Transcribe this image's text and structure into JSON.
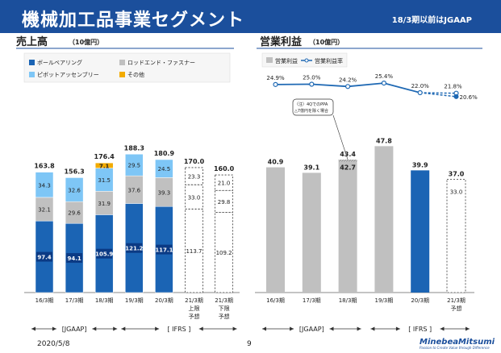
{
  "header": {
    "title": "機械加工品事業セグメント",
    "note": "18/3期以前はJGAAP"
  },
  "footer": {
    "date": "2020/5/8",
    "page": "9"
  },
  "logo": {
    "brand": "MinebeaMitsumi",
    "tagline": "Passion to Create Value through Difference"
  },
  "colors": {
    "blue": "#1b64b4",
    "gray": "#c0c0c0",
    "lightblue": "#7ec6f6",
    "orange": "#f2ab00",
    "header": "#1b4f9c",
    "line": "#1f69b4"
  },
  "chart_data": [
    {
      "type": "bar",
      "stacked": true,
      "title": "売上高",
      "unit": "（10億円）",
      "legend": [
        {
          "name": "ボールベアリング",
          "color": "#1b64b4"
        },
        {
          "name": "ロッドエンド・ファスナー",
          "color": "#c0c0c0"
        },
        {
          "name": "ピボットアッセンブリー",
          "color": "#7ec6f6"
        },
        {
          "name": "その他",
          "color": "#f2ab00"
        }
      ],
      "categories": [
        {
          "label": "16/3期",
          "sub": []
        },
        {
          "label": "17/3期",
          "sub": []
        },
        {
          "label": "18/3期",
          "sub": []
        },
        {
          "label": "19/3期",
          "sub": []
        },
        {
          "label": "20/3期",
          "sub": []
        },
        {
          "label": "21/3期",
          "sub": [
            "上限",
            "予想"
          ]
        },
        {
          "label": "21/3期",
          "sub": [
            "下限",
            "予想"
          ]
        }
      ],
      "series": [
        {
          "name": "ボールベアリング",
          "values": [
            97.4,
            94.1,
            105.9,
            121.2,
            117.1,
            113.7,
            109.2
          ]
        },
        {
          "name": "ロッドエンド・ファスナー",
          "values": [
            32.1,
            29.6,
            31.9,
            37.6,
            39.3,
            33.0,
            29.8
          ]
        },
        {
          "name": "ピボットアッセンブリー",
          "values": [
            34.3,
            32.6,
            31.5,
            29.5,
            24.5,
            23.3,
            21.0
          ]
        },
        {
          "name": "その他",
          "values": [
            null,
            null,
            7.1,
            null,
            null,
            null,
            null
          ]
        }
      ],
      "totals": [
        163.8,
        156.3,
        176.4,
        188.3,
        180.9,
        170.0,
        160.0
      ],
      "forecast_indices": [
        5,
        6
      ],
      "ylim": [
        0,
        200
      ],
      "eras": [
        {
          "label": "[JGAAP]",
          "from": 0,
          "to": 2
        },
        {
          "label": "[ IFRS ]",
          "from": 3,
          "to": 6
        }
      ]
    },
    {
      "type": "bar+line",
      "title": "営業利益",
      "unit": "（10億円）",
      "legend": [
        {
          "name": "営業利益",
          "color": "#c0c0c0"
        },
        {
          "name": "営業利益率",
          "color": "#1f69b4"
        }
      ],
      "categories": [
        {
          "label": "16/3期",
          "sub": []
        },
        {
          "label": "17/3期",
          "sub": []
        },
        {
          "label": "18/3期",
          "sub": []
        },
        {
          "label": "19/3期",
          "sub": []
        },
        {
          "label": "20/3期",
          "sub": []
        },
        {
          "label": "21/3期",
          "sub": [
            "予想"
          ]
        }
      ],
      "bars": [
        40.9,
        39.1,
        43.4,
        47.8,
        39.9,
        37.0
      ],
      "forecast_inner": {
        "index": 5,
        "value": 33.0
      },
      "adjusted": {
        "index": 2,
        "value": 42.7
      },
      "highlight_index": 4,
      "margin": [
        24.9,
        25.0,
        24.2,
        25.4,
        22.0,
        21.8
      ],
      "margin_alt": {
        "index": 5,
        "value": 20.6
      },
      "annotation": [
        "（注）4Qでの",
        "PPA",
        "△7億円を除く場合"
      ],
      "ylim": [
        0,
        60
      ],
      "eras": [
        {
          "label": "[JGAAP]",
          "from": 0,
          "to": 2
        },
        {
          "label": "[ IFRS ]",
          "from": 3,
          "to": 5
        }
      ]
    }
  ]
}
